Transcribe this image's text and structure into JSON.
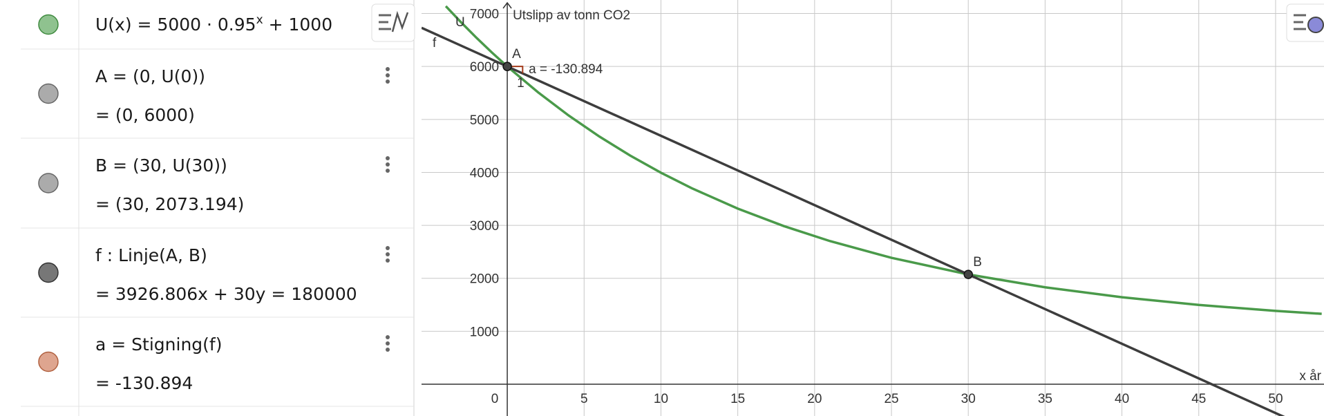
{
  "algebra_view": {
    "items": [
      {
        "definition": "U(x) = 5000 · 0.95",
        "exponent": "x",
        "definition_end": " + 1000",
        "color": "#8fc28f",
        "stroke": "#3f8a3f"
      },
      {
        "definition": "A = (0, U(0))",
        "value": "= (0, 6000)",
        "color": "#ababab",
        "stroke": "#666666"
      },
      {
        "definition": "B = (30, U(30))",
        "value": "= (30, 2073.194)",
        "color": "#ababab",
        "stroke": "#666666"
      },
      {
        "definition": "f : Linje(A, B)",
        "value": "= 3926.806x + 30y = 180000",
        "color": "#777777",
        "stroke": "#333333"
      },
      {
        "definition": "a = Stigning(f)",
        "value": "= -130.894",
        "color": "#dea58f",
        "stroke": "#b0603f"
      }
    ]
  },
  "chart_data": {
    "type": "line",
    "ylabel": "Utslipp av tonn CO2",
    "xlabel": "x år",
    "xlim": [
      -5.58,
      53.15
    ],
    "ylim": [
      -600,
      7255
    ],
    "xticks": [
      0,
      5,
      10,
      15,
      20,
      25,
      30,
      35,
      40,
      45,
      50
    ],
    "yticks": [
      1000,
      2000,
      3000,
      4000,
      5000,
      6000,
      7000
    ],
    "grid": true,
    "series": [
      {
        "name": "U",
        "color": "#4a9a4a",
        "x": [
          -4,
          -3,
          -2,
          -1,
          0,
          2,
          4,
          6,
          8,
          10,
          12,
          15,
          18,
          21,
          25,
          30,
          35,
          40,
          45,
          50,
          53
        ],
        "values": [
          7139,
          6832,
          6540,
          6263,
          6000,
          5513,
          5073,
          4676,
          4317,
          3994,
          3702,
          3316,
          2986,
          2703,
          2387,
          2073,
          1830,
          1643,
          1497,
          1385,
          1329
        ]
      },
      {
        "name": "f",
        "color": "#3d3d3d",
        "x": [
          -5.58,
          53.15
        ],
        "values": [
          6730,
          -957
        ]
      }
    ],
    "points": [
      {
        "name": "A",
        "x": 0,
        "y": 6000
      },
      {
        "name": "B",
        "x": 30,
        "y": 2073.194
      }
    ],
    "slope": -130.894,
    "slope_label": "a = -130.894",
    "slope_run_label": "1",
    "slope_color": "#a33a1a"
  }
}
